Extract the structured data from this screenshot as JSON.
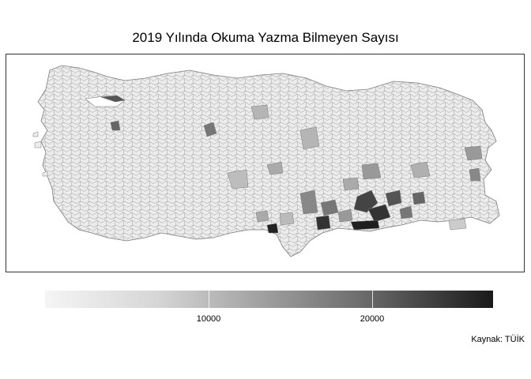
{
  "title": "2019 Yılında Okuma Yazma Bilmeyen Sayısı",
  "legend": {
    "min": 0,
    "max": 27500,
    "ticks": [
      {
        "value": 10000,
        "label": "10000"
      },
      {
        "value": 20000,
        "label": "20000"
      }
    ],
    "colors": {
      "low": "#f5f5f5",
      "high": "#1a1a1a"
    }
  },
  "caption": "Kaynak: TÜİK",
  "map": {
    "region": "Turkey districts",
    "border_color": "#8a8a8a",
    "base_fill": "#ececec"
  }
}
